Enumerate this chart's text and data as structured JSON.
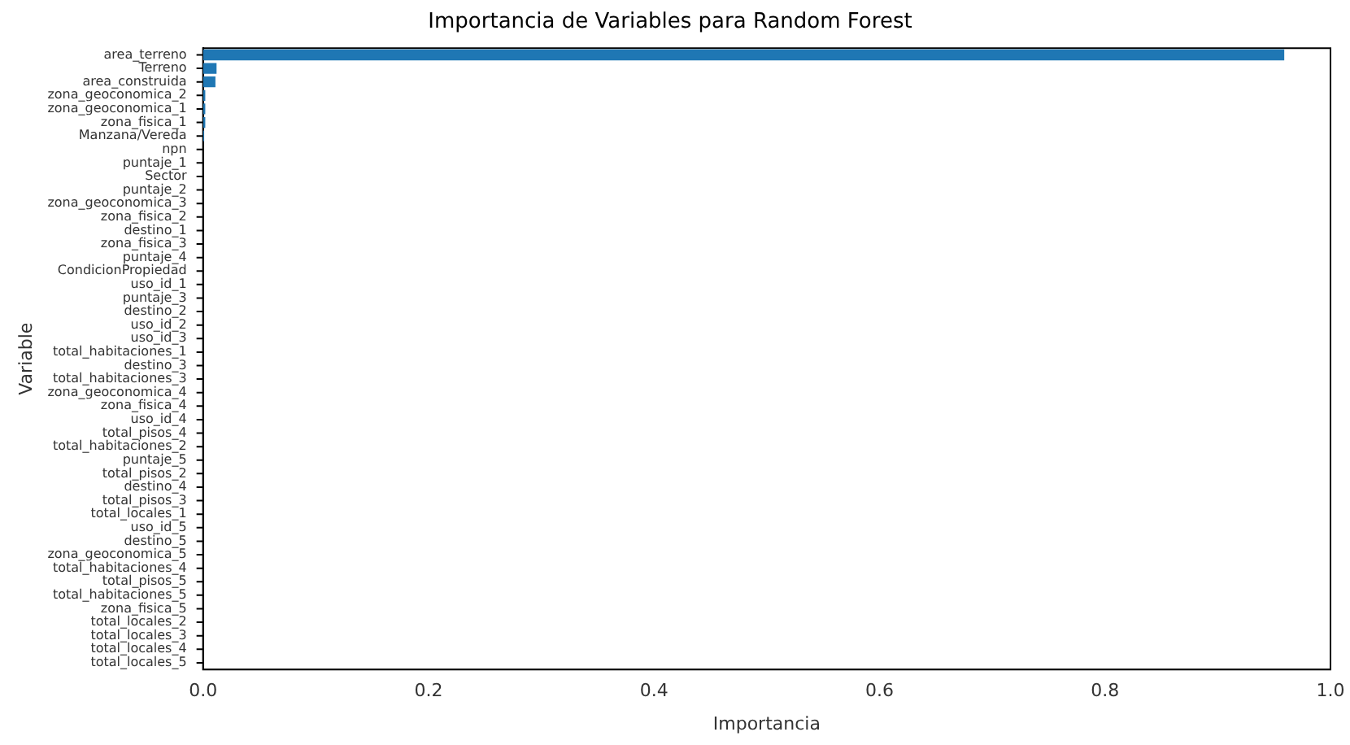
{
  "chart_data": {
    "type": "bar",
    "orientation": "horizontal",
    "title": "Importancia de Variables para Random Forest",
    "xlabel": "Importancia",
    "ylabel": "Variable",
    "categories": [
      "area_terreno",
      "Terreno",
      "area_construida",
      "zona_geoconomica_2",
      "zona_geoconomica_1",
      "zona_fisica_1",
      "Manzana/Vereda",
      "npn",
      "puntaje_1",
      "Sector",
      "puntaje_2",
      "zona_geoconomica_3",
      "zona_fisica_2",
      "destino_1",
      "zona_fisica_3",
      "puntaje_4",
      "CondicionPropiedad",
      "uso_id_1",
      "puntaje_3",
      "destino_2",
      "uso_id_2",
      "uso_id_3",
      "total_habitaciones_1",
      "destino_3",
      "total_habitaciones_3",
      "zona_geoconomica_4",
      "zona_fisica_4",
      "uso_id_4",
      "total_pisos_4",
      "total_habitaciones_2",
      "puntaje_5",
      "total_pisos_2",
      "destino_4",
      "total_pisos_3",
      "total_locales_1",
      "uso_id_5",
      "destino_5",
      "zona_geoconomica_5",
      "total_habitaciones_4",
      "total_pisos_5",
      "total_habitaciones_5",
      "zona_fisica_5",
      "total_locales_2",
      "total_locales_3",
      "total_locales_4",
      "total_locales_5"
    ],
    "values": [
      0.959,
      0.012,
      0.011,
      0.002,
      0.002,
      0.002,
      0.001,
      0,
      0,
      0,
      0,
      0,
      0,
      0,
      0,
      0,
      0,
      0,
      0,
      0,
      0,
      0,
      0,
      0,
      0,
      0,
      0,
      0,
      0,
      0,
      0,
      0,
      0,
      0,
      0,
      0,
      0,
      0,
      0,
      0,
      0,
      0,
      0,
      0,
      0,
      0
    ],
    "color": "#1f77b4",
    "xlim": [
      0,
      1
    ],
    "xticks": [
      {
        "value": 0,
        "label": "0.0"
      },
      {
        "value": 0.2,
        "label": "0.2"
      },
      {
        "value": 0.4,
        "label": "0.4"
      },
      {
        "value": 0.6,
        "label": "0.6"
      },
      {
        "value": 0.8,
        "label": "0.8"
      },
      {
        "value": 1,
        "label": "1.0"
      }
    ],
    "grid": false,
    "legend": false
  }
}
